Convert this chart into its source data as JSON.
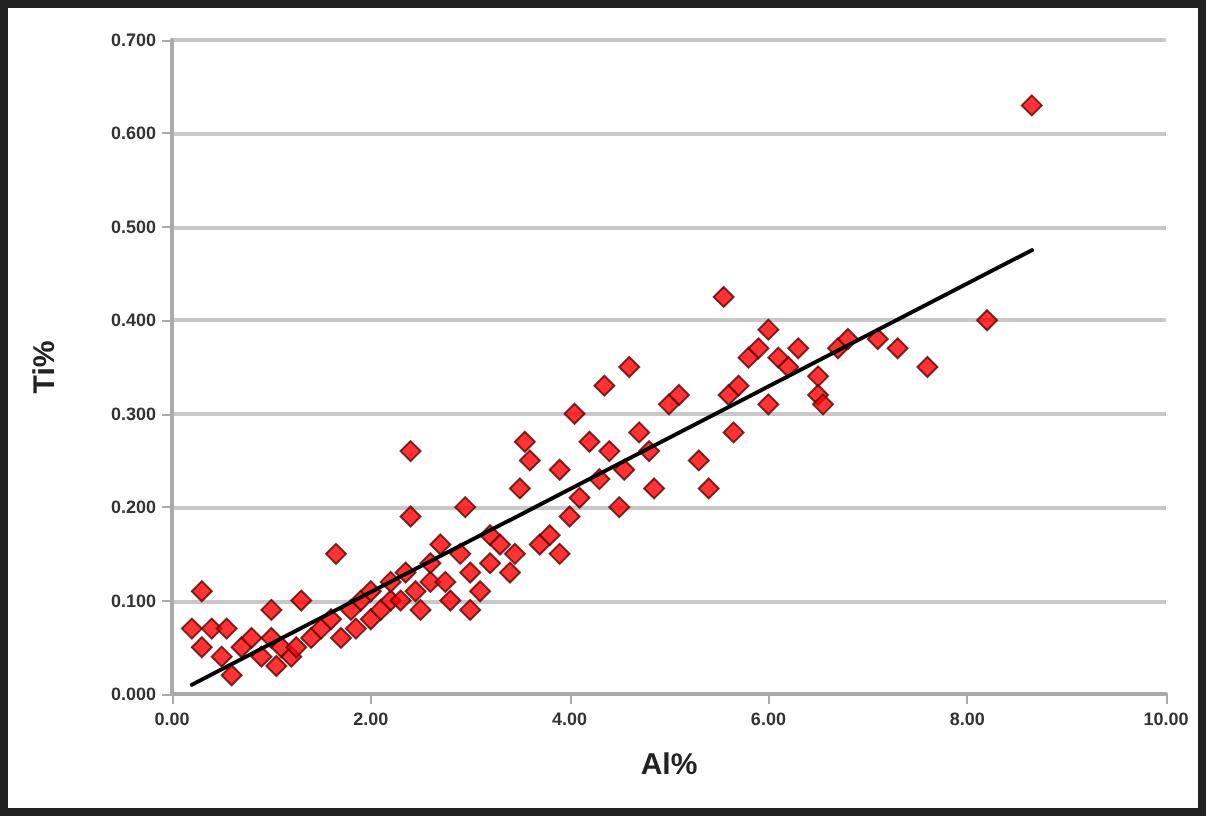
{
  "chart_data": {
    "type": "scatter",
    "xlabel": "Al%",
    "ylabel": "Ti%",
    "xlim": [
      0,
      10
    ],
    "ylim": [
      0,
      0.7
    ],
    "xticks": [
      {
        "value": 0,
        "label": "0.00"
      },
      {
        "value": 2,
        "label": "2.00"
      },
      {
        "value": 4,
        "label": "4.00"
      },
      {
        "value": 6,
        "label": "6.00"
      },
      {
        "value": 8,
        "label": "8.00"
      },
      {
        "value": 10,
        "label": "10.00"
      }
    ],
    "yticks": [
      {
        "value": 0,
        "label": "0.000"
      },
      {
        "value": 0.1,
        "label": "0.100"
      },
      {
        "value": 0.2,
        "label": "0.200"
      },
      {
        "value": 0.3,
        "label": "0.300"
      },
      {
        "value": 0.4,
        "label": "0.400"
      },
      {
        "value": 0.5,
        "label": "0.500"
      },
      {
        "value": 0.6,
        "label": "0.600"
      },
      {
        "value": 0.7,
        "label": "0.700"
      }
    ],
    "grid": "y",
    "series": [
      {
        "color": "#ff0000",
        "marker": "diamond",
        "x": [
          0.2,
          0.3,
          0.3,
          0.4,
          0.5,
          0.55,
          0.6,
          0.7,
          0.8,
          0.9,
          1.0,
          1.0,
          1.05,
          1.1,
          1.2,
          1.25,
          1.3,
          1.4,
          1.5,
          1.6,
          1.65,
          1.7,
          1.8,
          1.85,
          1.9,
          2.0,
          2.0,
          2.1,
          2.2,
          2.2,
          2.3,
          2.35,
          2.4,
          2.4,
          2.45,
          2.5,
          2.6,
          2.6,
          2.7,
          2.75,
          2.8,
          2.9,
          2.95,
          3.0,
          3.0,
          3.1,
          3.2,
          3.2,
          3.3,
          3.4,
          3.45,
          3.5,
          3.55,
          3.6,
          3.7,
          3.8,
          3.9,
          3.9,
          4.0,
          4.05,
          4.1,
          4.2,
          4.3,
          4.35,
          4.4,
          4.5,
          4.55,
          4.6,
          4.7,
          4.8,
          4.85,
          5.0,
          5.1,
          5.3,
          5.4,
          5.55,
          5.6,
          5.65,
          5.7,
          5.8,
          5.9,
          6.0,
          6.0,
          6.1,
          6.2,
          6.3,
          6.5,
          6.5,
          6.55,
          6.7,
          6.8,
          7.1,
          7.3,
          7.6,
          8.2,
          8.65
        ],
        "values": [
          0.07,
          0.11,
          0.05,
          0.07,
          0.04,
          0.07,
          0.02,
          0.05,
          0.06,
          0.04,
          0.09,
          0.06,
          0.03,
          0.05,
          0.04,
          0.05,
          0.1,
          0.06,
          0.07,
          0.08,
          0.15,
          0.06,
          0.09,
          0.07,
          0.1,
          0.08,
          0.11,
          0.09,
          0.1,
          0.12,
          0.1,
          0.13,
          0.26,
          0.19,
          0.11,
          0.09,
          0.12,
          0.14,
          0.16,
          0.12,
          0.1,
          0.15,
          0.2,
          0.13,
          0.09,
          0.11,
          0.17,
          0.14,
          0.16,
          0.13,
          0.15,
          0.22,
          0.27,
          0.25,
          0.16,
          0.17,
          0.24,
          0.15,
          0.19,
          0.3,
          0.21,
          0.27,
          0.23,
          0.33,
          0.26,
          0.2,
          0.24,
          0.35,
          0.28,
          0.26,
          0.22,
          0.31,
          0.32,
          0.25,
          0.22,
          0.425,
          0.32,
          0.28,
          0.33,
          0.36,
          0.37,
          0.31,
          0.39,
          0.36,
          0.35,
          0.37,
          0.34,
          0.32,
          0.31,
          0.37,
          0.38,
          0.38,
          0.37,
          0.35,
          0.4,
          0.63
        ]
      },
      {
        "type": "line",
        "color": "#000000",
        "marker": "none",
        "line_style": "solid",
        "x": [
          0.2,
          8.65
        ],
        "values": [
          0.01,
          0.475
        ]
      }
    ]
  }
}
